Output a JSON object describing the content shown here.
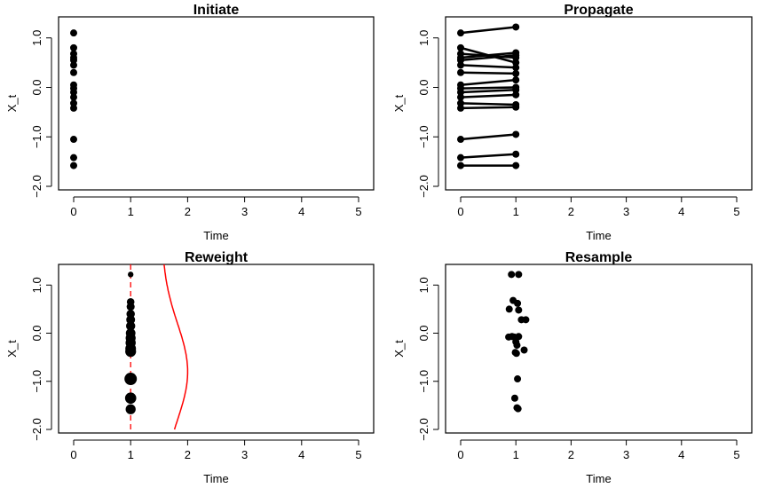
{
  "chart_data": [
    {
      "type": "scatter",
      "title": "Initiate",
      "xlabel": "Time",
      "ylabel": "X_t",
      "xlim": [
        0,
        5
      ],
      "ylim": [
        -2,
        1.3
      ],
      "xticks": [
        "0",
        "1",
        "2",
        "3",
        "4",
        "5"
      ],
      "yticks": [
        "−2.0",
        "−1.0",
        "0.0",
        "1.0"
      ],
      "points": [
        {
          "x": 0,
          "y": 1.1
        },
        {
          "x": 0,
          "y": 0.8
        },
        {
          "x": 0,
          "y": 0.68
        },
        {
          "x": 0,
          "y": 0.6
        },
        {
          "x": 0,
          "y": 0.55
        },
        {
          "x": 0,
          "y": 0.45
        },
        {
          "x": 0,
          "y": 0.3
        },
        {
          "x": 0,
          "y": 0.05
        },
        {
          "x": 0,
          "y": -0.02
        },
        {
          "x": 0,
          "y": -0.1
        },
        {
          "x": 0,
          "y": -0.2
        },
        {
          "x": 0,
          "y": -0.32
        },
        {
          "x": 0,
          "y": -0.42
        },
        {
          "x": 0,
          "y": -1.05
        },
        {
          "x": 0,
          "y": -1.42
        },
        {
          "x": 0,
          "y": -1.58
        }
      ]
    },
    {
      "type": "line",
      "title": "Propagate",
      "xlabel": "Time",
      "ylabel": "X_t",
      "xlim": [
        0,
        5
      ],
      "ylim": [
        -2,
        1.3
      ],
      "xticks": [
        "0",
        "1",
        "2",
        "3",
        "4",
        "5"
      ],
      "yticks": [
        "−2.0",
        "−1.0",
        "0.0",
        "1.0"
      ],
      "segments": [
        {
          "y0": 1.1,
          "y1": 1.22
        },
        {
          "y0": 0.8,
          "y1": 0.5
        },
        {
          "y0": 0.68,
          "y1": 0.6
        },
        {
          "y0": 0.6,
          "y1": 0.7
        },
        {
          "y0": 0.55,
          "y1": 0.65
        },
        {
          "y0": 0.45,
          "y1": 0.4
        },
        {
          "y0": 0.3,
          "y1": 0.28
        },
        {
          "y0": 0.05,
          "y1": 0.15
        },
        {
          "y0": -0.02,
          "y1": 0.0
        },
        {
          "y0": -0.1,
          "y1": -0.05
        },
        {
          "y0": -0.2,
          "y1": -0.15
        },
        {
          "y0": -0.32,
          "y1": -0.35
        },
        {
          "y0": -0.42,
          "y1": -0.4
        },
        {
          "y0": -1.05,
          "y1": -0.95
        },
        {
          "y0": -1.42,
          "y1": -1.35
        },
        {
          "y0": -1.58,
          "y1": -1.58
        }
      ]
    },
    {
      "type": "scatter",
      "title": "Reweight",
      "xlabel": "Time",
      "ylabel": "X_t",
      "xlim": [
        0,
        5
      ],
      "ylim": [
        -2,
        1.3
      ],
      "xticks": [
        "0",
        "1",
        "2",
        "3",
        "4",
        "5"
      ],
      "yticks": [
        "−2.0",
        "−1.0",
        "0.0",
        "1.0"
      ],
      "vline_x": 1,
      "line_color": "#ff0000",
      "points": [
        {
          "x": 1,
          "y": 1.22,
          "w": 0.15
        },
        {
          "x": 1,
          "y": 0.65,
          "w": 0.4
        },
        {
          "x": 1,
          "y": 0.55,
          "w": 0.45
        },
        {
          "x": 1,
          "y": 0.4,
          "w": 0.5
        },
        {
          "x": 1,
          "y": 0.28,
          "w": 0.55
        },
        {
          "x": 1,
          "y": 0.15,
          "w": 0.6
        },
        {
          "x": 1,
          "y": 0.0,
          "w": 0.65
        },
        {
          "x": 1,
          "y": -0.1,
          "w": 0.7
        },
        {
          "x": 1,
          "y": -0.2,
          "w": 0.72
        },
        {
          "x": 1,
          "y": -0.32,
          "w": 0.78
        },
        {
          "x": 1,
          "y": -0.38,
          "w": 0.8
        },
        {
          "x": 1,
          "y": -0.95,
          "w": 1.0
        },
        {
          "x": 1,
          "y": -1.35,
          "w": 0.85
        },
        {
          "x": 1,
          "y": -1.58,
          "w": 0.7
        }
      ],
      "density_curve": {
        "peak_x": 2.0,
        "base_x": 1.55,
        "center_y": -0.8,
        "sd": 1.0
      }
    },
    {
      "type": "scatter",
      "title": "Resample",
      "xlabel": "Time",
      "ylabel": "X_t",
      "xlim": [
        0,
        5
      ],
      "ylim": [
        -2,
        1.3
      ],
      "xticks": [
        "0",
        "1",
        "2",
        "3",
        "4",
        "5"
      ],
      "yticks": [
        "−2.0",
        "−1.0",
        "0.0",
        "1.0"
      ],
      "points": [
        {
          "x": 0.92,
          "y": 1.22
        },
        {
          "x": 1.05,
          "y": 1.22
        },
        {
          "x": 0.95,
          "y": 0.68
        },
        {
          "x": 1.03,
          "y": 0.62
        },
        {
          "x": 0.88,
          "y": 0.5
        },
        {
          "x": 1.05,
          "y": 0.48
        },
        {
          "x": 1.1,
          "y": 0.28
        },
        {
          "x": 1.18,
          "y": 0.28
        },
        {
          "x": 0.87,
          "y": -0.08
        },
        {
          "x": 0.93,
          "y": -0.07
        },
        {
          "x": 0.97,
          "y": -0.08
        },
        {
          "x": 1.05,
          "y": -0.07
        },
        {
          "x": 1.0,
          "y": -0.18
        },
        {
          "x": 1.02,
          "y": -0.25
        },
        {
          "x": 1.15,
          "y": -0.35
        },
        {
          "x": 0.99,
          "y": -0.4
        },
        {
          "x": 1.01,
          "y": -0.42
        },
        {
          "x": 1.03,
          "y": -0.95
        },
        {
          "x": 0.98,
          "y": -1.35
        },
        {
          "x": 1.02,
          "y": -1.55
        },
        {
          "x": 1.04,
          "y": -1.57
        }
      ]
    }
  ]
}
